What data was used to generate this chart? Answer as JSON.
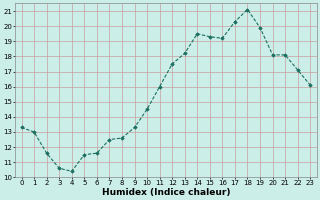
{
  "x": [
    0,
    1,
    2,
    3,
    4,
    5,
    6,
    7,
    8,
    9,
    10,
    11,
    12,
    13,
    14,
    15,
    16,
    17,
    18,
    19,
    20,
    21,
    22,
    23
  ],
  "y": [
    13.3,
    13.0,
    11.6,
    10.6,
    10.4,
    11.5,
    11.6,
    12.5,
    12.6,
    13.3,
    14.5,
    16.0,
    17.5,
    18.2,
    19.5,
    19.3,
    19.2,
    20.3,
    21.1,
    19.9,
    18.1,
    18.1,
    17.1,
    16.1
  ],
  "xlim": [
    -0.5,
    23.5
  ],
  "ylim": [
    10,
    21.5
  ],
  "yticks": [
    10,
    11,
    12,
    13,
    14,
    15,
    16,
    17,
    18,
    19,
    20,
    21
  ],
  "xticks": [
    0,
    1,
    2,
    3,
    4,
    5,
    6,
    7,
    8,
    9,
    10,
    11,
    12,
    13,
    14,
    15,
    16,
    17,
    18,
    19,
    20,
    21,
    22,
    23
  ],
  "xlabel": "Humidex (Indice chaleur)",
  "line_color": "#1a7060",
  "marker_color": "#1a7060",
  "bg_color": "#cceee8",
  "grid_color_major": "#c8a0a0",
  "grid_color_minor": "#c8a0a0",
  "tick_label_fontsize": 5.0,
  "xlabel_fontsize": 6.5
}
